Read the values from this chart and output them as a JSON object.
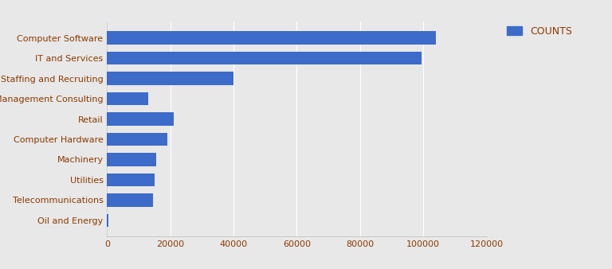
{
  "categories": [
    "Oil and Energy",
    "Telecommunications",
    "Utilities",
    "Machinery",
    "Computer Hardware",
    "Retail",
    "Management Consulting",
    "Staffing and Recruiting",
    "IT and Services",
    "Computer Software"
  ],
  "values": [
    300,
    14500,
    15000,
    15500,
    19000,
    21000,
    13000,
    40000,
    99500,
    104000
  ],
  "bar_color": "#3D6BC9",
  "legend_label": "COUNTS",
  "xlim": [
    0,
    120000
  ],
  "xticks": [
    0,
    20000,
    40000,
    60000,
    80000,
    100000,
    120000
  ],
  "background_color": "#E8E8E8",
  "grid_color": "#FFFFFF",
  "label_color": "#8B3A00",
  "tick_color": "#8B3A00",
  "bar_height": 0.65,
  "figsize": [
    7.68,
    3.38
  ],
  "dpi": 100
}
